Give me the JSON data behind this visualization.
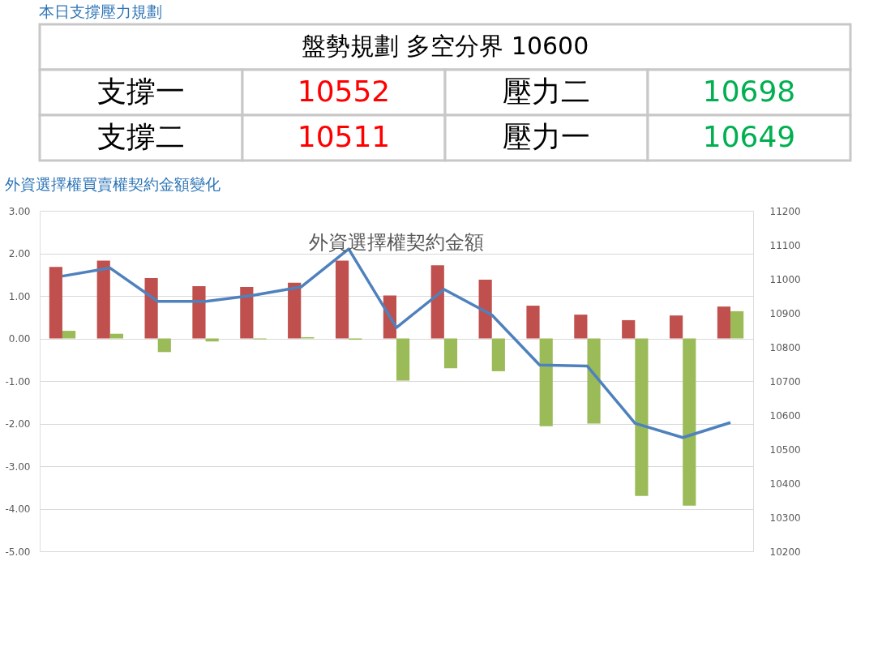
{
  "chart_data": [
    {
      "type": "other",
      "title": "本日支撐壓力規劃",
      "annotations": [
        "盤勢規劃 多空分界 10600",
        "支撐一",
        "10552",
        "壓力二",
        "10698",
        "支撐二",
        "10511",
        "壓力一",
        "10649"
      ],
      "colors": [
        "#000000",
        "#000000",
        "#ff0000",
        "#000000",
        "#00b050",
        "#000000",
        "#ff0000",
        "#000000",
        "#00b050"
      ]
    },
    {
      "type": "bar",
      "title": "外資選擇權買賣權契約金額變化",
      "subtitle": "外資選擇權契約金額",
      "categories": [
        null,
        null,
        null,
        null,
        null,
        null,
        null,
        null,
        null,
        null,
        null,
        null,
        null,
        null,
        null
      ],
      "series": [
        {
          "color": "#c0504d",
          "values": [
            1.68,
            1.83,
            1.42,
            1.23,
            1.21,
            1.31,
            1.83,
            1.01,
            1.72,
            1.38,
            0.77,
            0.56,
            0.43,
            0.54,
            0.75
          ]
        },
        {
          "color": "#9bbb59",
          "values": [
            0.18,
            0.11,
            -0.32,
            -0.07,
            -0.02,
            0.03,
            -0.03,
            -0.99,
            -0.7,
            -0.77,
            -2.06,
            -2.0,
            -3.7,
            -3.93,
            0.64
          ]
        },
        {
          "type": "line",
          "axis": "y2",
          "color": "#4f81bd",
          "values": [
            11008,
            11032,
            10934,
            10934,
            10952,
            10976,
            11088,
            10857,
            10969,
            10894,
            10747,
            10744,
            10576,
            10534,
            10578
          ]
        }
      ],
      "ylim": [
        -5,
        3
      ],
      "yticks": [
        {
          "value": -5,
          "label": "-5.00"
        },
        {
          "value": -4,
          "label": "-4.00"
        },
        {
          "value": -3,
          "label": "-3.00"
        },
        {
          "value": -2,
          "label": "-2.00"
        },
        {
          "value": -1,
          "label": "-1.00"
        },
        {
          "value": 0,
          "label": "0.00"
        },
        {
          "value": 1,
          "label": "1.00"
        },
        {
          "value": 2,
          "label": "2.00"
        },
        {
          "value": 3,
          "label": "3.00"
        }
      ],
      "y2lim": [
        10200,
        11200
      ],
      "y2ticks": [
        10200,
        10300,
        10400,
        10500,
        10600,
        10700,
        10800,
        10900,
        11000,
        11100,
        11200
      ],
      "grid": "y",
      "marker": "none"
    }
  ]
}
